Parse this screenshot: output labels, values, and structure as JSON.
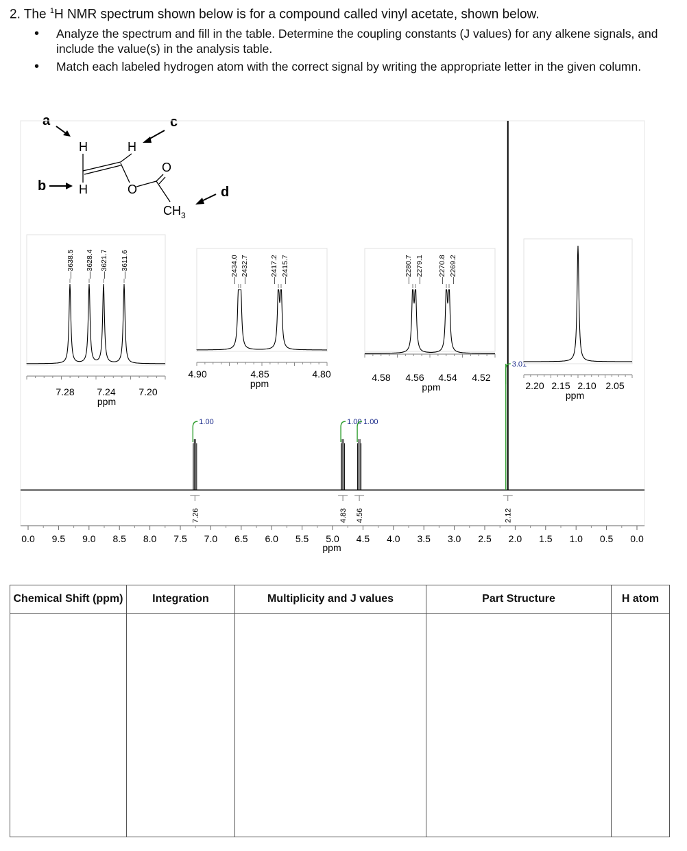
{
  "question": {
    "title_prefix": "2. The ",
    "title_sup": "1",
    "title_main": "H NMR spectrum shown below is for a compound called vinyl acetate, shown below.",
    "bullets": [
      "Analyze the spectrum and fill in the table. Determine the coupling constants (J values) for any alkene signals, and include the value(s) in the analysis table.",
      "Match each labeled hydrogen atom with the correct signal by writing the appropriate letter in the given column."
    ]
  },
  "structure": {
    "labels": [
      "a",
      "b",
      "c",
      "d"
    ],
    "atoms": [
      "H",
      "H",
      "H",
      "O",
      "O",
      "CH",
      "3"
    ]
  },
  "chart_data": [
    {
      "type": "line",
      "name": "full-spectrum",
      "xlabel": "ppm",
      "xlim": [
        10.0,
        0.0
      ],
      "x_ticks": [
        "0.0",
        "9.5",
        "9.0",
        "8.5",
        "8.0",
        "7.5",
        "7.0",
        "6.5",
        "6.0",
        "5.5",
        "5.0",
        "4.5",
        "4.0",
        "3.5",
        "3.0",
        "2.5",
        "2.0",
        "1.5",
        "1.0",
        "0.5",
        "0.0"
      ],
      "peaks_ppm": [
        7.26,
        4.83,
        4.56,
        2.12
      ],
      "peak_labels": [
        "7.26",
        "4.83",
        "4.56",
        "2.12"
      ],
      "integrals": [
        "1.00",
        "1.00",
        "1.00",
        "3.01"
      ]
    },
    {
      "type": "line",
      "name": "inset-7.24",
      "xlabel": "ppm",
      "x_ticks": [
        "7.28",
        "7.24",
        "7.20"
      ],
      "peaks_hz": [
        "3638.5",
        "3628.4",
        "3621.7",
        "3611.6"
      ]
    },
    {
      "type": "line",
      "name": "inset-4.85",
      "xlabel": "ppm",
      "x_ticks": [
        "4.90",
        "4.85",
        "4.80"
      ],
      "peaks_hz": [
        "2434.0",
        "2432.7",
        "2417.2",
        "2415.7"
      ]
    },
    {
      "type": "line",
      "name": "inset-4.55",
      "xlabel": "ppm",
      "x_ticks": [
        "4.58",
        "4.56",
        "4.54",
        "4.52"
      ],
      "peaks_hz": [
        "2280.7",
        "2279.1",
        "2270.8",
        "2269.2"
      ]
    },
    {
      "type": "line",
      "name": "inset-2.12",
      "xlabel": "ppm",
      "x_ticks": [
        "2.20",
        "2.15",
        "2.10",
        "2.05"
      ],
      "peaks_hz": []
    }
  ],
  "table": {
    "headers": [
      "Chemical Shift (ppm)",
      "Integration",
      "Multiplicity and J values",
      "Part Structure",
      "H atom"
    ]
  },
  "colors": {
    "integral": "#2e9e2e",
    "label": "#1a2a8a"
  }
}
